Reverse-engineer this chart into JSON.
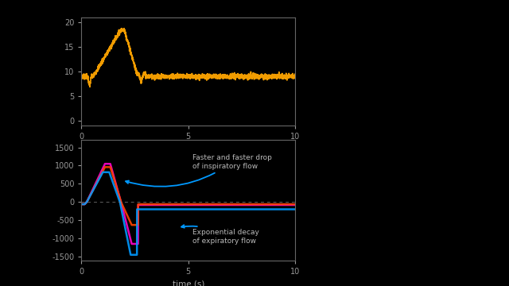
{
  "background_color": "#000000",
  "top_plot": {
    "ylabel_ticks": [
      0,
      5,
      10,
      15,
      20
    ],
    "ylim": [
      -1,
      21
    ],
    "xlim": [
      0,
      10
    ],
    "line_color": "#FFA500"
  },
  "bottom_plot": {
    "ylabel_ticks": [
      -1500,
      -1000,
      -500,
      0,
      500,
      1000,
      1500
    ],
    "ylim": [
      -1600,
      1700
    ],
    "xlim": [
      0,
      10
    ],
    "xlabel": "time (s)",
    "line_color_magenta": "#FF00CC",
    "line_color_red": "#FF4400",
    "line_color_blue": "#0099FF",
    "hline_color": "#888888",
    "annotation1": "Faster and faster drop\nof inspiratory flow",
    "annotation2": "Exponential decay\nof expiratory flow",
    "annotation_color": "#BBBBBB"
  },
  "tick_color": "#999999",
  "spine_color": "#666666",
  "axis_label_color": "#AAAAAA",
  "fig_bg": "#000000"
}
